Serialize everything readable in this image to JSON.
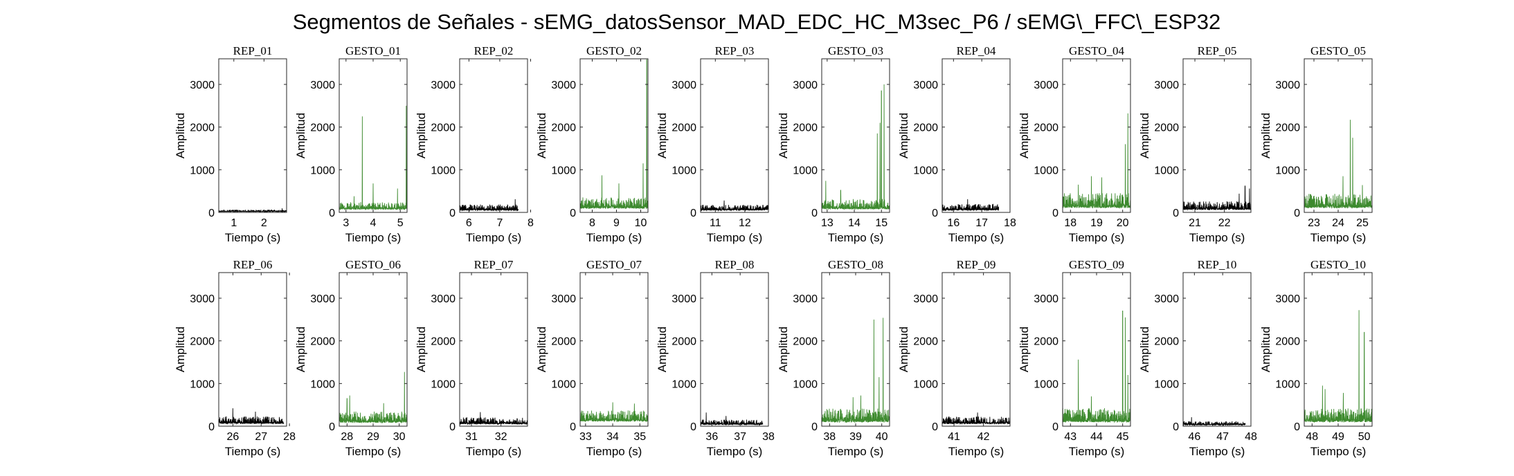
{
  "figure": {
    "title": "Segmentos de Señales - sEMG_datosSensor_MAD_EDC_HC_M3sec_P6 / sEMG\\_FFC\\_ESP32",
    "colors": {
      "rep": "#000000",
      "gesto": "#3d8a2e",
      "axis": "#262626",
      "text": "#000000"
    }
  },
  "chart_data": [
    {
      "type": "line",
      "title": "REP_01",
      "kind": "rep",
      "xlabel": "Tiempo (s)",
      "ylabel": "Amplitud",
      "xlim": [
        0.5,
        2.75
      ],
      "ylim": [
        0,
        3600
      ],
      "xticks": [
        1,
        2
      ],
      "yticks": [
        0,
        1000,
        2000,
        3000
      ],
      "series": [
        {
          "x_range": [
            0.5,
            2.75
          ],
          "baseline": 55,
          "noise": 45,
          "spikes": [
            [
              2.6,
              95
            ]
          ]
        }
      ]
    },
    {
      "type": "line",
      "title": "GESTO_01",
      "kind": "gesto",
      "xlabel": "Tiempo (s)",
      "ylabel": "Amplitud",
      "xlim": [
        2.75,
        5.25
      ],
      "ylim": [
        0,
        3600
      ],
      "xticks": [
        3,
        4,
        5
      ],
      "yticks": [
        0,
        1000,
        2000,
        3000
      ],
      "series": [
        {
          "x_range": [
            2.75,
            5.25
          ],
          "baseline": 200,
          "noise": 170,
          "spikes": [
            [
              3.6,
              2250
            ],
            [
              4.0,
              680
            ],
            [
              4.9,
              560
            ],
            [
              5.22,
              2500
            ],
            [
              3.3,
              380
            ]
          ]
        }
      ]
    },
    {
      "type": "line",
      "title": "REP_02",
      "kind": "rep",
      "xlabel": "Tiempo (s)",
      "ylabel": "Amplitud",
      "xlim": [
        5.7,
        7.9
      ],
      "ylim": [
        0,
        3600
      ],
      "xticks": [
        6,
        7,
        8
      ],
      "yticks": [
        0,
        1000,
        2000,
        3000
      ],
      "series": [
        {
          "x_range": [
            5.7,
            7.6
          ],
          "baseline": 130,
          "noise": 140,
          "spikes": [
            [
              7.5,
              310
            ]
          ]
        }
      ]
    },
    {
      "type": "line",
      "title": "GESTO_02",
      "kind": "gesto",
      "xlabel": "Tiempo (s)",
      "ylabel": "Amplitud",
      "xlim": [
        7.5,
        10.3
      ],
      "ylim": [
        0,
        3600
      ],
      "xticks": [
        8,
        9,
        10
      ],
      "yticks": [
        0,
        1000,
        2000,
        3000
      ],
      "series": [
        {
          "x_range": [
            7.5,
            10.3
          ],
          "baseline": 260,
          "noise": 260,
          "spikes": [
            [
              8.4,
              870
            ],
            [
              9.1,
              680
            ],
            [
              10.25,
              3580
            ],
            [
              10.1,
              1150
            ]
          ]
        }
      ]
    },
    {
      "type": "line",
      "title": "REP_03",
      "kind": "rep",
      "xlabel": "Tiempo (s)",
      "ylabel": "Amplitud",
      "xlim": [
        10.5,
        12.8
      ],
      "ylim": [
        0,
        3600
      ],
      "xticks": [
        11,
        12
      ],
      "yticks": [
        0,
        1000,
        2000,
        3000
      ],
      "series": [
        {
          "x_range": [
            10.5,
            12.8
          ],
          "baseline": 140,
          "noise": 130,
          "spikes": [
            [
              11.3,
              280
            ]
          ]
        }
      ]
    },
    {
      "type": "line",
      "title": "GESTO_03",
      "kind": "gesto",
      "xlabel": "Tiempo (s)",
      "ylabel": "Amplitud",
      "xlim": [
        12.8,
        15.3
      ],
      "ylim": [
        0,
        3600
      ],
      "xticks": [
        13,
        14,
        15
      ],
      "yticks": [
        0,
        1000,
        2000,
        3000
      ],
      "series": [
        {
          "x_range": [
            12.8,
            15.3
          ],
          "baseline": 220,
          "noise": 240,
          "spikes": [
            [
              12.95,
              740
            ],
            [
              13.5,
              520
            ],
            [
              14.85,
              1850
            ],
            [
              15.0,
              2850
            ],
            [
              15.1,
              3000
            ],
            [
              14.95,
              2100
            ]
          ]
        }
      ]
    },
    {
      "type": "line",
      "title": "REP_04",
      "kind": "rep",
      "xlabel": "Tiempo (s)",
      "ylabel": "Amplitud",
      "xlim": [
        15.6,
        18.0
      ],
      "ylim": [
        0,
        3600
      ],
      "xticks": [
        16,
        17,
        18
      ],
      "yticks": [
        0,
        1000,
        2000,
        3000
      ],
      "series": [
        {
          "x_range": [
            15.6,
            17.6
          ],
          "baseline": 140,
          "noise": 150,
          "spikes": [
            [
              16.5,
              310
            ]
          ]
        }
      ]
    },
    {
      "type": "line",
      "title": "GESTO_04",
      "kind": "gesto",
      "xlabel": "Tiempo (s)",
      "ylabel": "Amplitud",
      "xlim": [
        17.7,
        20.3
      ],
      "ylim": [
        0,
        3600
      ],
      "xticks": [
        18,
        19,
        20
      ],
      "yticks": [
        0,
        1000,
        2000,
        3000
      ],
      "series": [
        {
          "x_range": [
            17.7,
            20.3
          ],
          "baseline": 300,
          "noise": 350,
          "spikes": [
            [
              18.8,
              850
            ],
            [
              19.2,
              820
            ],
            [
              20.2,
              2320
            ],
            [
              20.1,
              1600
            ],
            [
              18.3,
              650
            ]
          ]
        }
      ]
    },
    {
      "type": "line",
      "title": "REP_05",
      "kind": "rep",
      "xlabel": "Tiempo (s)",
      "ylabel": "Amplitud",
      "xlim": [
        20.6,
        22.9
      ],
      "ylim": [
        0,
        3600
      ],
      "xticks": [
        21,
        22
      ],
      "yticks": [
        0,
        1000,
        2000,
        3000
      ],
      "series": [
        {
          "x_range": [
            20.6,
            22.9
          ],
          "baseline": 180,
          "noise": 200,
          "spikes": [
            [
              22.7,
              620
            ],
            [
              22.85,
              560
            ],
            [
              22.5,
              440
            ]
          ]
        }
      ]
    },
    {
      "type": "line",
      "title": "GESTO_05",
      "kind": "gesto",
      "xlabel": "Tiempo (s)",
      "ylabel": "Amplitud",
      "xlim": [
        22.6,
        25.4
      ],
      "ylim": [
        0,
        3600
      ],
      "xticks": [
        23,
        24,
        25
      ],
      "yticks": [
        0,
        1000,
        2000,
        3000
      ],
      "series": [
        {
          "x_range": [
            22.6,
            25.4
          ],
          "baseline": 300,
          "noise": 330,
          "spikes": [
            [
              24.5,
              2170
            ],
            [
              24.6,
              1750
            ],
            [
              24.2,
              850
            ],
            [
              25.0,
              640
            ]
          ]
        }
      ]
    },
    {
      "type": "line",
      "title": "REP_06",
      "kind": "rep",
      "xlabel": "Tiempo (s)",
      "ylabel": "Amplitud",
      "xlim": [
        25.5,
        27.9
      ],
      "ylim": [
        0,
        3600
      ],
      "xticks": [
        26,
        27,
        28
      ],
      "yticks": [
        0,
        1000,
        2000,
        3000
      ],
      "series": [
        {
          "x_range": [
            25.5,
            27.8
          ],
          "baseline": 170,
          "noise": 170,
          "spikes": [
            [
              26.0,
              420
            ],
            [
              26.8,
              340
            ]
          ]
        }
      ]
    },
    {
      "type": "line",
      "title": "GESTO_06",
      "kind": "gesto",
      "xlabel": "Tiempo (s)",
      "ylabel": "Amplitud",
      "xlim": [
        27.7,
        30.3
      ],
      "ylim": [
        0,
        3600
      ],
      "xticks": [
        28,
        29,
        30
      ],
      "yticks": [
        0,
        1000,
        2000,
        3000
      ],
      "series": [
        {
          "x_range": [
            27.7,
            30.3
          ],
          "baseline": 240,
          "noise": 260,
          "spikes": [
            [
              28.0,
              650
            ],
            [
              28.1,
              720
            ],
            [
              30.2,
              1270
            ],
            [
              29.4,
              540
            ]
          ]
        }
      ]
    },
    {
      "type": "line",
      "title": "REP_07",
      "kind": "rep",
      "xlabel": "Tiempo (s)",
      "ylabel": "Amplitud",
      "xlim": [
        30.6,
        32.9
      ],
      "ylim": [
        0,
        3600
      ],
      "xticks": [
        31,
        32
      ],
      "yticks": [
        0,
        1000,
        2000,
        3000
      ],
      "series": [
        {
          "x_range": [
            30.6,
            32.9
          ],
          "baseline": 140,
          "noise": 160,
          "spikes": [
            [
              31.3,
              330
            ]
          ]
        }
      ]
    },
    {
      "type": "line",
      "title": "GESTO_07",
      "kind": "gesto",
      "xlabel": "Tiempo (s)",
      "ylabel": "Amplitud",
      "xlim": [
        32.8,
        35.3
      ],
      "ylim": [
        0,
        3600
      ],
      "xticks": [
        33,
        34,
        35
      ],
      "yticks": [
        0,
        1000,
        2000,
        3000
      ],
      "series": [
        {
          "x_range": [
            32.8,
            35.3
          ],
          "baseline": 320,
          "noise": 260,
          "spikes": [
            [
              34.0,
              560
            ],
            [
              34.8,
              530
            ]
          ]
        }
      ]
    },
    {
      "type": "line",
      "title": "REP_08",
      "kind": "rep",
      "xlabel": "Tiempo (s)",
      "ylabel": "Amplitud",
      "xlim": [
        35.6,
        38.0
      ],
      "ylim": [
        0,
        3600
      ],
      "xticks": [
        36,
        37,
        38
      ],
      "yticks": [
        0,
        1000,
        2000,
        3000
      ],
      "series": [
        {
          "x_range": [
            35.6,
            37.8
          ],
          "baseline": 100,
          "noise": 120,
          "spikes": [
            [
              35.8,
              320
            ],
            [
              36.5,
              240
            ]
          ]
        }
      ]
    },
    {
      "type": "line",
      "title": "GESTO_08",
      "kind": "gesto",
      "xlabel": "Tiempo (s)",
      "ylabel": "Amplitud",
      "xlim": [
        37.7,
        40.3
      ],
      "ylim": [
        0,
        3600
      ],
      "xticks": [
        38,
        39,
        40
      ],
      "yticks": [
        0,
        1000,
        2000,
        3000
      ],
      "series": [
        {
          "x_range": [
            37.7,
            40.3
          ],
          "baseline": 270,
          "noise": 320,
          "spikes": [
            [
              39.7,
              2500
            ],
            [
              40.05,
              2540
            ],
            [
              39.9,
              1150
            ],
            [
              39.2,
              720
            ],
            [
              38.9,
              680
            ]
          ]
        }
      ]
    },
    {
      "type": "line",
      "title": "REP_09",
      "kind": "rep",
      "xlabel": "Tiempo (s)",
      "ylabel": "Amplitud",
      "xlim": [
        40.6,
        42.9
      ],
      "ylim": [
        0,
        3600
      ],
      "xticks": [
        41,
        42
      ],
      "yticks": [
        0,
        1000,
        2000,
        3000
      ],
      "series": [
        {
          "x_range": [
            40.6,
            42.9
          ],
          "baseline": 160,
          "noise": 170,
          "spikes": [
            [
              41.8,
              320
            ]
          ]
        }
      ]
    },
    {
      "type": "line",
      "title": "GESTO_09",
      "kind": "gesto",
      "xlabel": "Tiempo (s)",
      "ylabel": "Amplitud",
      "xlim": [
        42.7,
        45.3
      ],
      "ylim": [
        0,
        3600
      ],
      "xticks": [
        43,
        44,
        45
      ],
      "yticks": [
        0,
        1000,
        2000,
        3000
      ],
      "series": [
        {
          "x_range": [
            42.7,
            45.3
          ],
          "baseline": 270,
          "noise": 330,
          "spikes": [
            [
              43.3,
              1560
            ],
            [
              45.0,
              2700
            ],
            [
              45.1,
              2550
            ],
            [
              45.2,
              1200
            ],
            [
              43.8,
              700
            ]
          ]
        }
      ]
    },
    {
      "type": "line",
      "title": "REP_10",
      "kind": "rep",
      "xlabel": "Tiempo (s)",
      "ylabel": "Amplitud",
      "xlim": [
        45.6,
        48.0
      ],
      "ylim": [
        0,
        3600
      ],
      "xticks": [
        46,
        47,
        48
      ],
      "yticks": [
        0,
        1000,
        2000,
        3000
      ],
      "series": [
        {
          "x_range": [
            45.6,
            47.8
          ],
          "baseline": 80,
          "noise": 90,
          "spikes": [
            [
              45.9,
              210
            ]
          ]
        }
      ]
    },
    {
      "type": "line",
      "title": "GESTO_10",
      "kind": "gesto",
      "xlabel": "Tiempo (s)",
      "ylabel": "Amplitud",
      "xlim": [
        47.7,
        50.3
      ],
      "ylim": [
        0,
        3600
      ],
      "xticks": [
        48,
        49,
        50
      ],
      "yticks": [
        0,
        1000,
        2000,
        3000
      ],
      "series": [
        {
          "x_range": [
            47.7,
            50.3
          ],
          "baseline": 280,
          "noise": 320,
          "spikes": [
            [
              48.4,
              950
            ],
            [
              48.5,
              870
            ],
            [
              49.8,
              2720
            ],
            [
              50.0,
              2200
            ],
            [
              49.2,
              780
            ]
          ]
        }
      ]
    }
  ]
}
